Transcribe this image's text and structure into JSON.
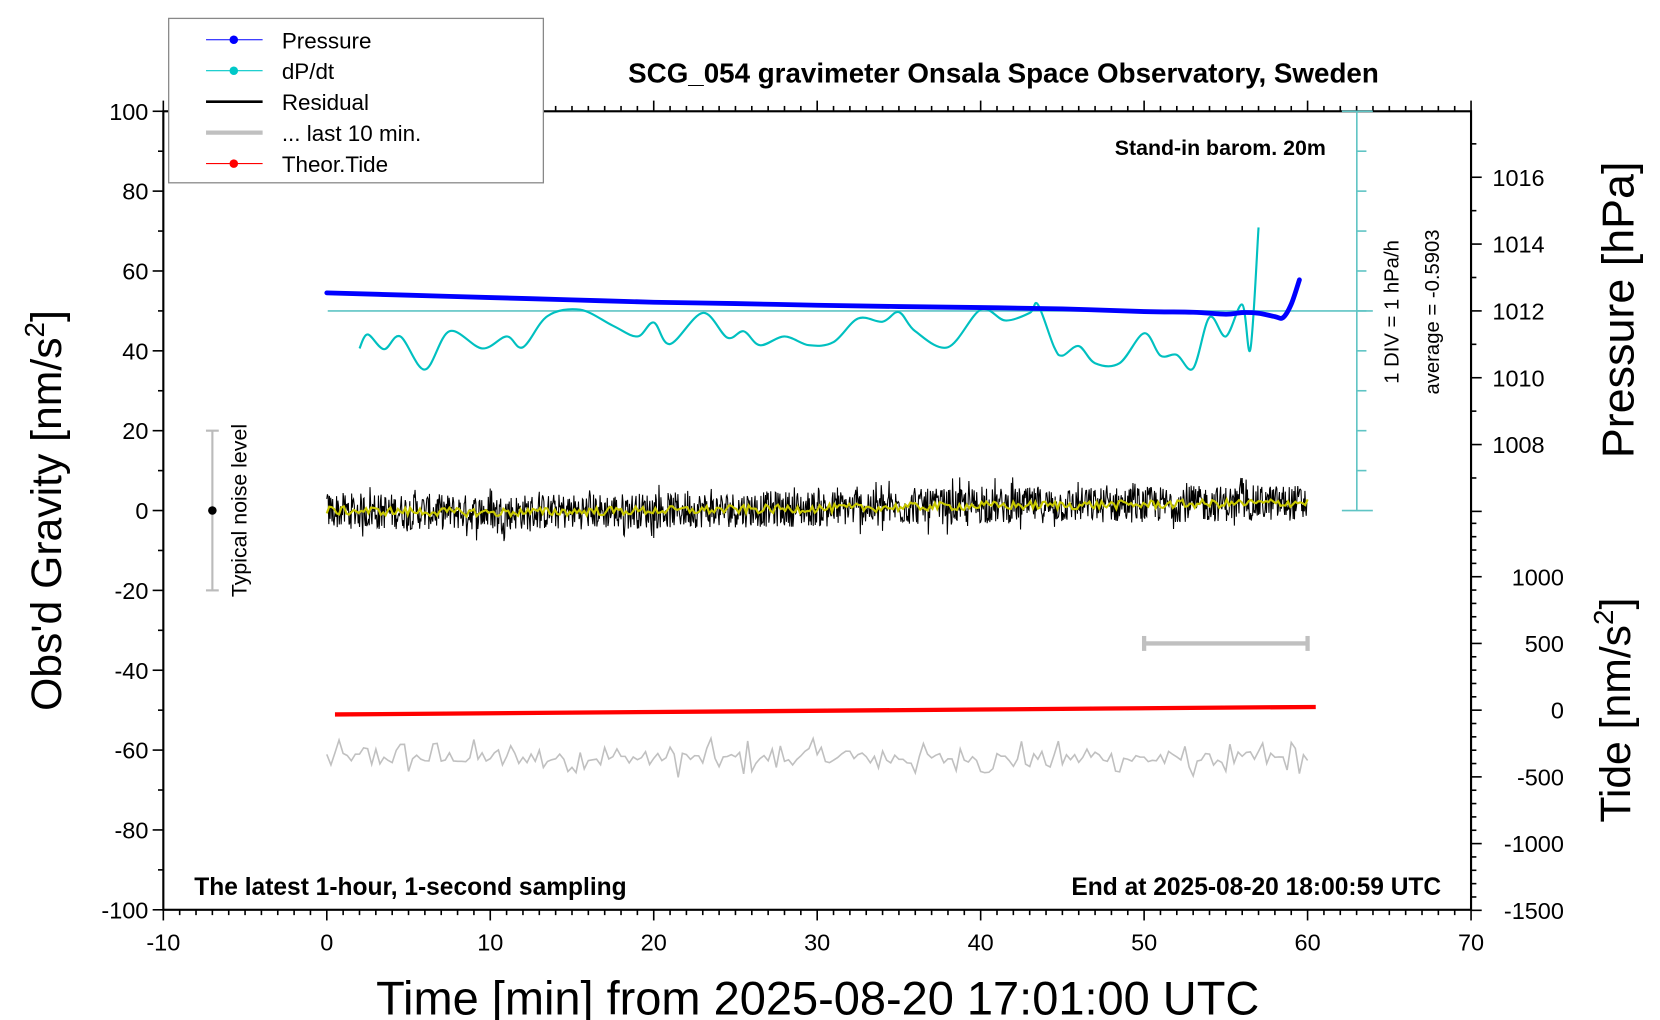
{
  "chart_data": {
    "type": "line",
    "title": "SCG_054 gravimeter Onsala Space Observatory, Sweden",
    "xlabel": "Time [min] from 2025-08-20 17:01:00 UTC",
    "ylabel": "Obs'd Gravity [nm/s",
    "ylabel_sup": "2",
    "ylabel_end": "]",
    "y2label": "Pressure [hPa]",
    "y3label": "Tide [nm/s",
    "y3label_sup": "2",
    "y3label_end": "]",
    "xlim": [
      -10,
      70
    ],
    "ylim": [
      -100,
      100
    ],
    "y2lim": [
      1000,
      1018
    ],
    "y3lim": [
      -1500,
      4490
    ],
    "xticks": [
      "-10",
      "0",
      "10",
      "20",
      "30",
      "40",
      "50",
      "60",
      "70"
    ],
    "yticks": [
      "100",
      "80",
      "60",
      "40",
      "20",
      "0",
      "-20",
      "-40",
      "-60",
      "-80",
      "-100"
    ],
    "y2ticks": [
      "1016",
      "1014",
      "1012",
      "1010",
      "1008"
    ],
    "y3ticks": [
      "1000",
      "500",
      "0",
      "-500",
      "-1000",
      "-1500"
    ],
    "grid": false,
    "legend_position": "top-left",
    "legend": [
      {
        "label": "Pressure",
        "color": "#0000ff",
        "marker": "dot"
      },
      {
        "label": "dP/dt",
        "color": "#00c8c8",
        "marker": "dot"
      },
      {
        "label": "Residual",
        "color": "#000000",
        "marker": "line"
      },
      {
        "label": "... last 10 min.",
        "color": "#c0c0c0",
        "marker": "thick-line"
      },
      {
        "label": "Theor.Tide",
        "color": "#ff0000",
        "marker": "dot"
      }
    ],
    "annotations": {
      "barometer": "Stand-in barom. 20m",
      "div_scale": "1 DIV = 1 hPa/h",
      "average": "average = -0.5903",
      "noise_label": "Typical noise level",
      "sampling": "The latest 1-hour, 1-second sampling",
      "end_time": "End at 2025-08-20 18:00:59 UTC"
    },
    "noise_bar": {
      "x": -7,
      "low": -20,
      "high": 20,
      "center": 0
    },
    "last10_bar": {
      "from": 50,
      "to": 60,
      "tide_level": 500
    },
    "series": [
      {
        "name": "Pressure",
        "axis": "pressure_hPa",
        "color": "#0000ff",
        "x": [
          0,
          5,
          10,
          15,
          20,
          25,
          30,
          35,
          40,
          45,
          50,
          53,
          55,
          56,
          57,
          58,
          58.5,
          59,
          59.5
        ],
        "y": [
          1012.54,
          1012.47,
          1012.4,
          1012.33,
          1012.26,
          1012.22,
          1012.17,
          1012.13,
          1012.1,
          1012.06,
          1011.98,
          1011.96,
          1011.9,
          1011.95,
          1011.93,
          1011.83,
          1011.8,
          1012.2,
          1012.93
        ]
      },
      {
        "name": "dP/dt",
        "axis": "hPa_per_h",
        "zero_level_pressure": 1012,
        "color": "#00c0c0",
        "x": [
          2,
          2.5,
          3.5,
          4.5,
          6,
          7.5,
          9.5,
          11,
          12,
          13.5,
          15.5,
          17.5,
          19,
          20,
          21,
          23,
          24.5,
          25.5,
          26.5,
          28,
          29.5,
          31,
          32.5,
          34,
          35,
          36,
          38,
          40,
          41.5,
          43,
          43.5,
          44.5,
          45,
          46,
          47,
          48.5,
          50,
          51,
          52,
          53,
          54,
          55,
          56,
          56.5,
          57
        ],
        "y": [
          -0.94,
          -0.59,
          -0.96,
          -0.64,
          -1.47,
          -0.51,
          -0.94,
          -0.64,
          -0.91,
          -0.13,
          0.03,
          -0.37,
          -0.64,
          -0.29,
          -0.83,
          -0.05,
          -0.67,
          -0.51,
          -0.86,
          -0.64,
          -0.86,
          -0.78,
          -0.19,
          -0.27,
          -0.03,
          -0.51,
          -0.91,
          0.03,
          -0.24,
          -0.05,
          0.16,
          -0.91,
          -1.12,
          -0.88,
          -1.31,
          -1.31,
          -0.56,
          -1.12,
          -1.1,
          -1.44,
          -0.16,
          -0.64,
          0.16,
          -0.96,
          2.09
        ]
      },
      {
        "name": "Residual",
        "axis": "gravity",
        "color": "#000000",
        "smoothed_color": "#c8c800",
        "x": [
          0,
          10,
          20,
          30,
          40,
          50,
          60
        ],
        "y": [
          0,
          -0.5,
          0,
          0.5,
          1.2,
          1.5,
          2.0
        ],
        "noise_amplitude": 4.5
      },
      {
        "name": "... last 10 min.",
        "axis": "gravity",
        "color": "#c0c0c0",
        "x": [
          0,
          60
        ],
        "y": [
          -62,
          -62
        ],
        "noise_amplitude": 5
      },
      {
        "name": "Theor.Tide",
        "axis": "tide_nm_s2",
        "color": "#ff0000",
        "x": [
          0.5,
          20,
          40,
          60.5
        ],
        "y": [
          -32,
          -14,
          5,
          24
        ]
      }
    ]
  }
}
